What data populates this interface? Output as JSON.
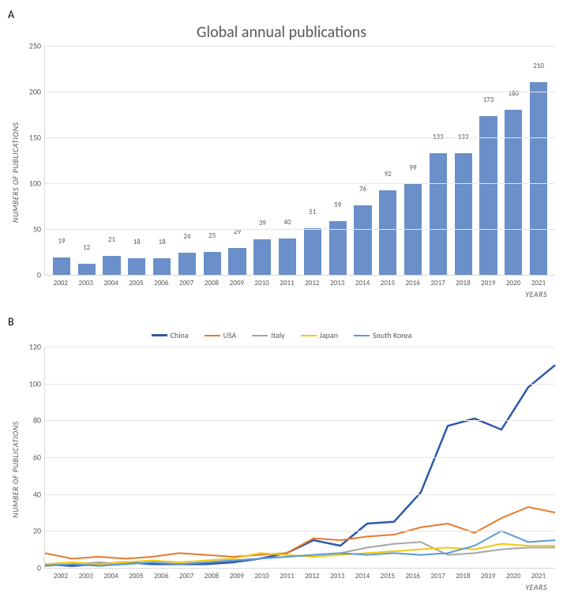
{
  "panelA": {
    "label": "A",
    "title": "Global annual publications",
    "y_label": "NUMBERS OF PUBLICATIONS",
    "x_label": "YEARS",
    "y_min": 0,
    "y_max": 250,
    "y_step": 50,
    "bar_color": "#6a8fc9",
    "grid_color": "#e6e6e6",
    "text_color": "#595959",
    "categories": [
      "2002",
      "2003",
      "2004",
      "2005",
      "2006",
      "2007",
      "2008",
      "2009",
      "2010",
      "2011",
      "2012",
      "2013",
      "2014",
      "2015",
      "2016",
      "2017",
      "2018",
      "2019",
      "2020",
      "2021"
    ],
    "values": [
      19,
      12,
      21,
      18,
      18,
      24,
      25,
      29,
      39,
      40,
      51,
      59,
      76,
      92,
      99,
      133,
      133,
      173,
      180,
      210
    ]
  },
  "panelB": {
    "label": "B",
    "y_label": "NUMBER OF PUBLICATIONS",
    "x_label": "YEARS",
    "y_min": 0,
    "y_max": 120,
    "y_step": 20,
    "grid_color": "#e6e6e6",
    "text_color": "#595959",
    "categories": [
      "2002",
      "2003",
      "2004",
      "2005",
      "2006",
      "2007",
      "2008",
      "2009",
      "2010",
      "2011",
      "2012",
      "2013",
      "2014",
      "2015",
      "2016",
      "2017",
      "2018",
      "2019",
      "2020",
      "2021"
    ],
    "series": [
      {
        "name": "China",
        "color": "#2e5aa8",
        "width": 2.5,
        "values": [
          2,
          1,
          2,
          3,
          2,
          2,
          2,
          3,
          5,
          8,
          15,
          12,
          24,
          25,
          41,
          77,
          81,
          75,
          98,
          110
        ]
      },
      {
        "name": "USA",
        "color": "#e8792e",
        "width": 2,
        "values": [
          8,
          5,
          6,
          5,
          6,
          8,
          7,
          6,
          7,
          8,
          16,
          15,
          17,
          18,
          22,
          24,
          19,
          27,
          33,
          30
        ]
      },
      {
        "name": "Italy",
        "color": "#a6a6a6",
        "width": 2,
        "values": [
          1,
          2,
          3,
          2,
          3,
          2,
          3,
          4,
          5,
          6,
          7,
          8,
          11,
          13,
          14,
          7,
          8,
          10,
          11,
          11
        ]
      },
      {
        "name": "Japan",
        "color": "#f2c80f",
        "width": 2,
        "values": [
          2,
          3,
          2,
          3,
          4,
          3,
          4,
          5,
          8,
          7,
          6,
          7,
          8,
          9,
          10,
          11,
          10,
          13,
          12,
          12
        ]
      },
      {
        "name": "South Korea",
        "color": "#5b9bd5",
        "width": 2,
        "values": [
          1,
          2,
          1,
          2,
          3,
          2,
          3,
          4,
          5,
          6,
          7,
          8,
          7,
          8,
          7,
          8,
          12,
          20,
          14,
          15
        ]
      }
    ]
  }
}
